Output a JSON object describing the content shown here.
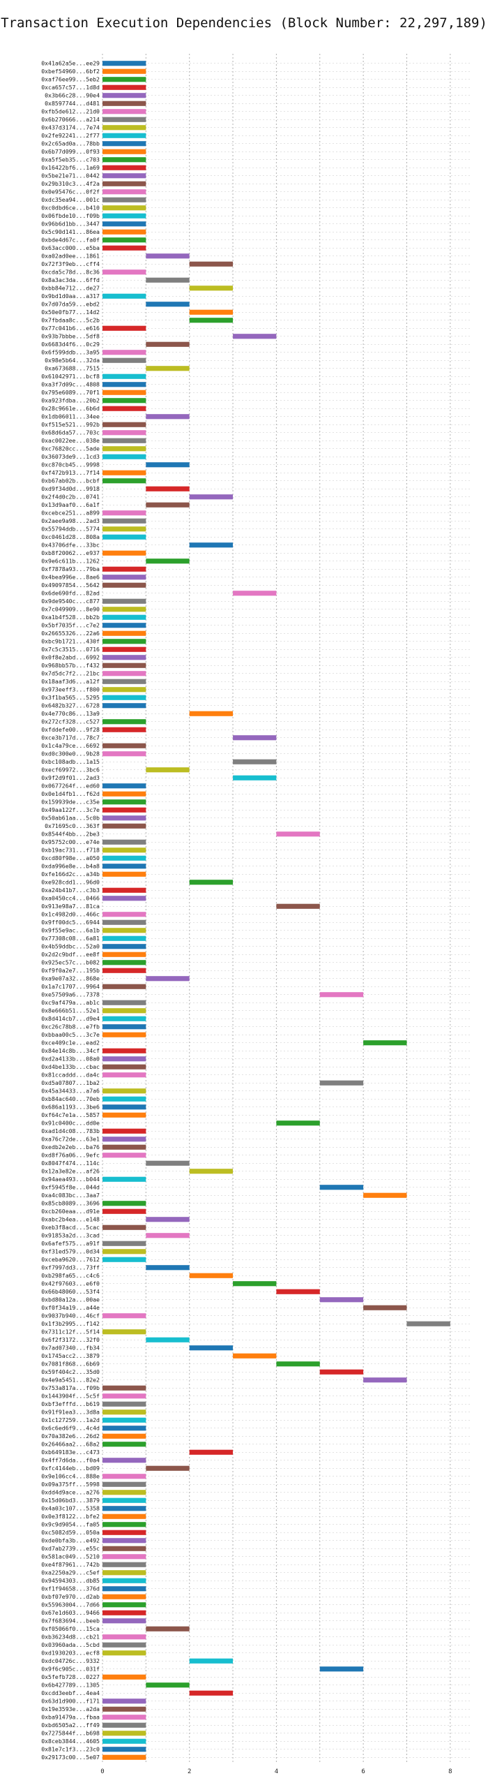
{
  "chart_data": {
    "type": "gantt",
    "title": "Transaction Execution Dependencies (Block Number: 22,297,189)",
    "xlabel": "",
    "ylabel": "",
    "xlim": [
      0,
      8
    ],
    "x_ticks": [
      "0",
      "2",
      "4",
      "6",
      "8"
    ],
    "grid": true,
    "colors": [
      "#1f77b4",
      "#ff7f0e",
      "#2ca02c",
      "#d62728",
      "#9467bd",
      "#8c564b",
      "#e377c2",
      "#7f7f7f",
      "#bcbd22",
      "#17becf"
    ],
    "tasks": [
      {
        "tx": "0x41a62a5e...ee29",
        "start": 0,
        "end": 1
      },
      {
        "tx": "0xbef54960...6bf2",
        "start": 0,
        "end": 1
      },
      {
        "tx": "0xaf76ee99...5eb2",
        "start": 0,
        "end": 1
      },
      {
        "tx": "0xca657c57...1d8d",
        "start": 0,
        "end": 1
      },
      {
        "tx": "0x3b66c28...90e4",
        "start": 0,
        "end": 1
      },
      {
        "tx": "0x8597744...d481",
        "start": 0,
        "end": 1
      },
      {
        "tx": "0xfb5de612...21d0",
        "start": 0,
        "end": 1
      },
      {
        "tx": "0x6b270666...a214",
        "start": 0,
        "end": 1
      },
      {
        "tx": "0x437d3174...7e74",
        "start": 0,
        "end": 1
      },
      {
        "tx": "0x2fe92241...2f77",
        "start": 0,
        "end": 1
      },
      {
        "tx": "0x2c65ad0a...78bb",
        "start": 0,
        "end": 1
      },
      {
        "tx": "0x6b77d099...0f93",
        "start": 0,
        "end": 1
      },
      {
        "tx": "0xa5f5eb35...c703",
        "start": 0,
        "end": 1
      },
      {
        "tx": "0x16422bf6...1a69",
        "start": 0,
        "end": 1
      },
      {
        "tx": "0x5be21e71...0442",
        "start": 0,
        "end": 1
      },
      {
        "tx": "0x29b310c3...4f2a",
        "start": 0,
        "end": 1
      },
      {
        "tx": "0x0e95476c...0f2f",
        "start": 0,
        "end": 1
      },
      {
        "tx": "0xdc35ea94...001c",
        "start": 0,
        "end": 1
      },
      {
        "tx": "0xc0dbd6ce...b410",
        "start": 0,
        "end": 1
      },
      {
        "tx": "0x06fbde10...f09b",
        "start": 0,
        "end": 1
      },
      {
        "tx": "0x96b6d1bb...3447",
        "start": 0,
        "end": 1
      },
      {
        "tx": "0x5c90d141...86ea",
        "start": 0,
        "end": 1
      },
      {
        "tx": "0xbde4d67c...fa0f",
        "start": 0,
        "end": 1
      },
      {
        "tx": "0x63acc000...e5ba",
        "start": 0,
        "end": 1
      },
      {
        "tx": "0xa02ad0ee...1861",
        "start": 1,
        "end": 2
      },
      {
        "tx": "0x72f3f9eb...cff4",
        "start": 2,
        "end": 3
      },
      {
        "tx": "0xcda5c78d...8c36",
        "start": 0,
        "end": 1
      },
      {
        "tx": "0x8a3ac3da...6ffd",
        "start": 1,
        "end": 2
      },
      {
        "tx": "0xbb84e712...de27",
        "start": 2,
        "end": 3
      },
      {
        "tx": "0x9bd1d0aa...a317",
        "start": 0,
        "end": 1
      },
      {
        "tx": "0x7d07da59...ebd2",
        "start": 1,
        "end": 2
      },
      {
        "tx": "0x50e0fb77...14d2",
        "start": 2,
        "end": 3
      },
      {
        "tx": "0x7fbdaa8c...5c2b",
        "start": 2,
        "end": 3
      },
      {
        "tx": "0x77c041b6...e616",
        "start": 0,
        "end": 1
      },
      {
        "tx": "0x93b7bbbe...5df8",
        "start": 3,
        "end": 4
      },
      {
        "tx": "0x6683d4f6...0c29",
        "start": 1,
        "end": 2
      },
      {
        "tx": "0x6f599ddb...3a95",
        "start": 0,
        "end": 1
      },
      {
        "tx": "0x98e5b64...32da",
        "start": 0,
        "end": 1
      },
      {
        "tx": "0xa673688...7515",
        "start": 1,
        "end": 2
      },
      {
        "tx": "0x61042971...bcf8",
        "start": 0,
        "end": 1
      },
      {
        "tx": "0xa3f7d09c...4808",
        "start": 0,
        "end": 1
      },
      {
        "tx": "0x795e6089...70f1",
        "start": 0,
        "end": 1
      },
      {
        "tx": "0xa923fdba...20b2",
        "start": 0,
        "end": 1
      },
      {
        "tx": "0x28c9661e...6b6d",
        "start": 0,
        "end": 1
      },
      {
        "tx": "0x1db06011...34ee",
        "start": 1,
        "end": 2
      },
      {
        "tx": "0xf515e521...992b",
        "start": 0,
        "end": 1
      },
      {
        "tx": "0x68d6da57...703c",
        "start": 0,
        "end": 1
      },
      {
        "tx": "0xac0022ee...038e",
        "start": 0,
        "end": 1
      },
      {
        "tx": "0xc76820cc...5ade",
        "start": 0,
        "end": 1
      },
      {
        "tx": "0x36073de9...1cd3",
        "start": 0,
        "end": 1
      },
      {
        "tx": "0xc870cb45...9998",
        "start": 1,
        "end": 2
      },
      {
        "tx": "0xf472b913...7f14",
        "start": 0,
        "end": 1
      },
      {
        "tx": "0xb67ab02b...bcbf",
        "start": 0,
        "end": 1
      },
      {
        "tx": "0xd9f34d0d...9918",
        "start": 1,
        "end": 2
      },
      {
        "tx": "0x2f4d0c2b...0741",
        "start": 2,
        "end": 3
      },
      {
        "tx": "0x13d9aaf0...6a1f",
        "start": 1,
        "end": 2
      },
      {
        "tx": "0xcebce251...a899",
        "start": 0,
        "end": 1
      },
      {
        "tx": "0x2aee9a98...2ad3",
        "start": 0,
        "end": 1
      },
      {
        "tx": "0x55794ddb...5774",
        "start": 0,
        "end": 1
      },
      {
        "tx": "0xc0461d28...808a",
        "start": 0,
        "end": 1
      },
      {
        "tx": "0x43706dfe...33bc",
        "start": 2,
        "end": 3
      },
      {
        "tx": "0xb8f20062...e937",
        "start": 0,
        "end": 1
      },
      {
        "tx": "0x9e6c611b...1262",
        "start": 1,
        "end": 2
      },
      {
        "tx": "0xf7878a93...79ba",
        "start": 0,
        "end": 1
      },
      {
        "tx": "0x4bea996e...8ae6",
        "start": 0,
        "end": 1
      },
      {
        "tx": "0x49097854...5642",
        "start": 0,
        "end": 1
      },
      {
        "tx": "0x6de690fd...82ad",
        "start": 3,
        "end": 4
      },
      {
        "tx": "0x9de9540c...c877",
        "start": 0,
        "end": 1
      },
      {
        "tx": "0x7c049909...8e90",
        "start": 0,
        "end": 1
      },
      {
        "tx": "0xa1b4f528...bb2b",
        "start": 0,
        "end": 1
      },
      {
        "tx": "0x5bf7035f...c7e2",
        "start": 0,
        "end": 1
      },
      {
        "tx": "0x26655326...22a6",
        "start": 0,
        "end": 1
      },
      {
        "tx": "0xbc9b1721...430f",
        "start": 0,
        "end": 1
      },
      {
        "tx": "0x7c5c3515...0716",
        "start": 0,
        "end": 1
      },
      {
        "tx": "0x0f8e2abd...6992",
        "start": 0,
        "end": 1
      },
      {
        "tx": "0x968bb57b...f432",
        "start": 0,
        "end": 1
      },
      {
        "tx": "0x7d5dc7f2...21bc",
        "start": 0,
        "end": 1
      },
      {
        "tx": "0x18aaf3d6...a12f",
        "start": 0,
        "end": 1
      },
      {
        "tx": "0x973eeff3...f800",
        "start": 0,
        "end": 1
      },
      {
        "tx": "0x3f1ba565...5295",
        "start": 0,
        "end": 1
      },
      {
        "tx": "0x6482b327...6728",
        "start": 0,
        "end": 1
      },
      {
        "tx": "0x4e770c86...13a9",
        "start": 2,
        "end": 3
      },
      {
        "tx": "0x272cf328...c527",
        "start": 0,
        "end": 1
      },
      {
        "tx": "0xfddefe00...9f28",
        "start": 0,
        "end": 1
      },
      {
        "tx": "0xce3b717d...78c7",
        "start": 3,
        "end": 4
      },
      {
        "tx": "0x1c4a79ce...6692",
        "start": 0,
        "end": 1
      },
      {
        "tx": "0xd0c300e0...9b28",
        "start": 0,
        "end": 1
      },
      {
        "tx": "0xbc108adb...1a15",
        "start": 3,
        "end": 4
      },
      {
        "tx": "0xecf69972...3bc6",
        "start": 1,
        "end": 2
      },
      {
        "tx": "0x9f2d9f01...2ad3",
        "start": 3,
        "end": 4
      },
      {
        "tx": "0x0677264f...ed60",
        "start": 0,
        "end": 1
      },
      {
        "tx": "0x0e1d4fb1...f62d",
        "start": 0,
        "end": 1
      },
      {
        "tx": "0x159939de...c35e",
        "start": 0,
        "end": 1
      },
      {
        "tx": "0x49aa122f...3c7e",
        "start": 0,
        "end": 1
      },
      {
        "tx": "0x50ab61aa...5c0b",
        "start": 0,
        "end": 1
      },
      {
        "tx": "0x71695c0...363f",
        "start": 0,
        "end": 1
      },
      {
        "tx": "0x8544f4bb...2be3",
        "start": 4,
        "end": 5
      },
      {
        "tx": "0x95752c00...e74e",
        "start": 0,
        "end": 1
      },
      {
        "tx": "0xb19ac731...f718",
        "start": 0,
        "end": 1
      },
      {
        "tx": "0xcd80f98e...a050",
        "start": 0,
        "end": 1
      },
      {
        "tx": "0xda996e8e...b4a8",
        "start": 0,
        "end": 1
      },
      {
        "tx": "0xfe166d2c...a34b",
        "start": 0,
        "end": 1
      },
      {
        "tx": "0xe928cdd1...96d0",
        "start": 2,
        "end": 3
      },
      {
        "tx": "0xa24b41b7...c3b3",
        "start": 0,
        "end": 1
      },
      {
        "tx": "0xa0450cc4...0466",
        "start": 0,
        "end": 1
      },
      {
        "tx": "0x913e98a7...81ca",
        "start": 4,
        "end": 5
      },
      {
        "tx": "0x1c4982d0...466c",
        "start": 0,
        "end": 1
      },
      {
        "tx": "0x9ff00dc5...6944",
        "start": 0,
        "end": 1
      },
      {
        "tx": "0x9f55e9ac...6a1b",
        "start": 0,
        "end": 1
      },
      {
        "tx": "0x77308c08...6a81",
        "start": 0,
        "end": 1
      },
      {
        "tx": "0x4b59ddbc...52a0",
        "start": 0,
        "end": 1
      },
      {
        "tx": "0x2d2c9bdf...ee8f",
        "start": 0,
        "end": 1
      },
      {
        "tx": "0x925ec57c...b082",
        "start": 0,
        "end": 1
      },
      {
        "tx": "0xf9f0a2e7...195b",
        "start": 0,
        "end": 1
      },
      {
        "tx": "0xa9e07a32...868e",
        "start": 1,
        "end": 2
      },
      {
        "tx": "0x1a7c1707...9964",
        "start": 0,
        "end": 1
      },
      {
        "tx": "0xe57509a6...7378",
        "start": 5,
        "end": 6
      },
      {
        "tx": "0xc9af479a...ab1c",
        "start": 0,
        "end": 1
      },
      {
        "tx": "0x8e666b51...52e1",
        "start": 0,
        "end": 1
      },
      {
        "tx": "0x8d414cb7...d9e4",
        "start": 0,
        "end": 1
      },
      {
        "tx": "0xc26c78b8...e7fb",
        "start": 0,
        "end": 1
      },
      {
        "tx": "0xbbaa00c5...3c7e",
        "start": 0,
        "end": 1
      },
      {
        "tx": "0xce409c1e...ead2",
        "start": 6,
        "end": 7
      },
      {
        "tx": "0x84e14c8b...34cf",
        "start": 0,
        "end": 1
      },
      {
        "tx": "0xd2a4133b...08a0",
        "start": 0,
        "end": 1
      },
      {
        "tx": "0xd4be133b...cbac",
        "start": 0,
        "end": 1
      },
      {
        "tx": "0x81ccaddd...da4c",
        "start": 0,
        "end": 1
      },
      {
        "tx": "0xd5a07807...1ba2",
        "start": 5,
        "end": 6
      },
      {
        "tx": "0x45a34433...a7a6",
        "start": 0,
        "end": 1
      },
      {
        "tx": "0xb84ac640...70eb",
        "start": 0,
        "end": 1
      },
      {
        "tx": "0x686a1193...3be6",
        "start": 0,
        "end": 1
      },
      {
        "tx": "0xf64c7e1a...5857",
        "start": 0,
        "end": 1
      },
      {
        "tx": "0x91c0400c...dd0e",
        "start": 4,
        "end": 5
      },
      {
        "tx": "0xad1d4c08...783b",
        "start": 0,
        "end": 1
      },
      {
        "tx": "0xa76c72de...63e1",
        "start": 0,
        "end": 1
      },
      {
        "tx": "0xedb2e2eb...ba76",
        "start": 0,
        "end": 1
      },
      {
        "tx": "0xd8f76a06...9efc",
        "start": 0,
        "end": 1
      },
      {
        "tx": "0x8047f474...114c",
        "start": 1,
        "end": 2
      },
      {
        "tx": "0x12a3e82e...af26",
        "start": 2,
        "end": 3
      },
      {
        "tx": "0x94aea493...b044",
        "start": 0,
        "end": 1
      },
      {
        "tx": "0xf5945f8e...044d",
        "start": 5,
        "end": 6
      },
      {
        "tx": "0xa4c083bc...3aa7",
        "start": 6,
        "end": 7
      },
      {
        "tx": "0x85cb8089...3696",
        "start": 0,
        "end": 1
      },
      {
        "tx": "0xcb260eaa...d91e",
        "start": 0,
        "end": 1
      },
      {
        "tx": "0xabc2b4ea...e148",
        "start": 1,
        "end": 2
      },
      {
        "tx": "0xeb3f8acd...5cac",
        "start": 0,
        "end": 1
      },
      {
        "tx": "0x91853a2d...3cad",
        "start": 1,
        "end": 2
      },
      {
        "tx": "0x6afef575...a91f",
        "start": 0,
        "end": 1
      },
      {
        "tx": "0xf31ed579...0d34",
        "start": 0,
        "end": 1
      },
      {
        "tx": "0xceba9620...7612",
        "start": 0,
        "end": 1
      },
      {
        "tx": "0xf7997dd3...73ff",
        "start": 1,
        "end": 2
      },
      {
        "tx": "0xb298fa65...c4c6",
        "start": 2,
        "end": 3
      },
      {
        "tx": "0x42f97603...e6f0",
        "start": 3,
        "end": 4
      },
      {
        "tx": "0x66b48060...53f4",
        "start": 4,
        "end": 5
      },
      {
        "tx": "0xbd80a12a...00ae",
        "start": 5,
        "end": 6
      },
      {
        "tx": "0xf0f34a19...a44e",
        "start": 6,
        "end": 7
      },
      {
        "tx": "0x9037b940...46cf",
        "start": 0,
        "end": 1
      },
      {
        "tx": "0x1f3b2995...f142",
        "start": 7,
        "end": 8
      },
      {
        "tx": "0x7311c12f...5f14",
        "start": 0,
        "end": 1
      },
      {
        "tx": "0x6f2f3172...32f0",
        "start": 1,
        "end": 2
      },
      {
        "tx": "0x7ad07340...fb34",
        "start": 2,
        "end": 3
      },
      {
        "tx": "0x1745acc2...3879",
        "start": 3,
        "end": 4
      },
      {
        "tx": "0x7081f868...6b69",
        "start": 4,
        "end": 5
      },
      {
        "tx": "0x59f404c2...35d0",
        "start": 5,
        "end": 6
      },
      {
        "tx": "0x4e9a5451...82e2",
        "start": 6,
        "end": 7
      },
      {
        "tx": "0x753a817a...f09b",
        "start": 0,
        "end": 1
      },
      {
        "tx": "0x1443904f...5c5f",
        "start": 0,
        "end": 1
      },
      {
        "tx": "0xbf3efffd...b619",
        "start": 0,
        "end": 1
      },
      {
        "tx": "0x91f91ea3...3d8a",
        "start": 0,
        "end": 1
      },
      {
        "tx": "0x1c127259...1a2d",
        "start": 0,
        "end": 1
      },
      {
        "tx": "0x6c6ed6f9...4c4d",
        "start": 0,
        "end": 1
      },
      {
        "tx": "0x70a382e6...26d2",
        "start": 0,
        "end": 1
      },
      {
        "tx": "0x26466aa2...68a2",
        "start": 0,
        "end": 1
      },
      {
        "tx": "0xb649183e...c473",
        "start": 2,
        "end": 3
      },
      {
        "tx": "0x4ff7d6da...f0a4",
        "start": 0,
        "end": 1
      },
      {
        "tx": "0xfc4144eb...bd09",
        "start": 1,
        "end": 2
      },
      {
        "tx": "0x9e106cc4...888e",
        "start": 0,
        "end": 1
      },
      {
        "tx": "0x09a375ff...5998",
        "start": 0,
        "end": 1
      },
      {
        "tx": "0xdd4d9ace...a276",
        "start": 0,
        "end": 1
      },
      {
        "tx": "0x15d06bd3...3879",
        "start": 0,
        "end": 1
      },
      {
        "tx": "0x4a03c107...5358",
        "start": 0,
        "end": 1
      },
      {
        "tx": "0x0e3f8122...bfe2",
        "start": 0,
        "end": 1
      },
      {
        "tx": "0x9c9d9054...fa05",
        "start": 0,
        "end": 1
      },
      {
        "tx": "0xc5082d59...050a",
        "start": 0,
        "end": 1
      },
      {
        "tx": "0xde0bfa3b...e492",
        "start": 0,
        "end": 1
      },
      {
        "tx": "0xd7ab2739...e55c",
        "start": 0,
        "end": 1
      },
      {
        "tx": "0x581ac049...5210",
        "start": 0,
        "end": 1
      },
      {
        "tx": "0xe4f87961...742b",
        "start": 0,
        "end": 1
      },
      {
        "tx": "0xa2250a29...c5ef",
        "start": 0,
        "end": 1
      },
      {
        "tx": "0x94594303...db85",
        "start": 0,
        "end": 1
      },
      {
        "tx": "0xf1f94658...376d",
        "start": 0,
        "end": 1
      },
      {
        "tx": "0xbf07e970...d2ab",
        "start": 0,
        "end": 1
      },
      {
        "tx": "0x55963004...7d66",
        "start": 0,
        "end": 1
      },
      {
        "tx": "0x67e1d603...9466",
        "start": 0,
        "end": 1
      },
      {
        "tx": "0x7f683694...beeb",
        "start": 0,
        "end": 1
      },
      {
        "tx": "0xf05066f0...15ca",
        "start": 1,
        "end": 2
      },
      {
        "tx": "0xb36234d8...cb21",
        "start": 0,
        "end": 1
      },
      {
        "tx": "0x03960ada...5cbd",
        "start": 0,
        "end": 1
      },
      {
        "tx": "0xd1930203...ecf8",
        "start": 0,
        "end": 1
      },
      {
        "tx": "0xdc04726c...9332",
        "start": 2,
        "end": 3
      },
      {
        "tx": "0x9f6c905c...031f",
        "start": 5,
        "end": 6
      },
      {
        "tx": "0x5fefb728...0227",
        "start": 0,
        "end": 1
      },
      {
        "tx": "0x6b427789...1305",
        "start": 1,
        "end": 2
      },
      {
        "tx": "0xcdd3eebf...4ea4",
        "start": 2,
        "end": 3
      },
      {
        "tx": "0x63d1d900...f171",
        "start": 0,
        "end": 1
      },
      {
        "tx": "0x19e3593e...a2da",
        "start": 0,
        "end": 1
      },
      {
        "tx": "0xba91479a...fbaa",
        "start": 0,
        "end": 1
      },
      {
        "tx": "0xbd6505a2...ff49",
        "start": 0,
        "end": 1
      },
      {
        "tx": "0x7275844f...b698",
        "start": 0,
        "end": 1
      },
      {
        "tx": "0x8ceb3844...4605",
        "start": 0,
        "end": 1
      },
      {
        "tx": "0x81e7c1f3...23c0",
        "start": 0,
        "end": 1
      },
      {
        "tx": "0x29173c00...5e07",
        "start": 0,
        "end": 1
      }
    ]
  }
}
